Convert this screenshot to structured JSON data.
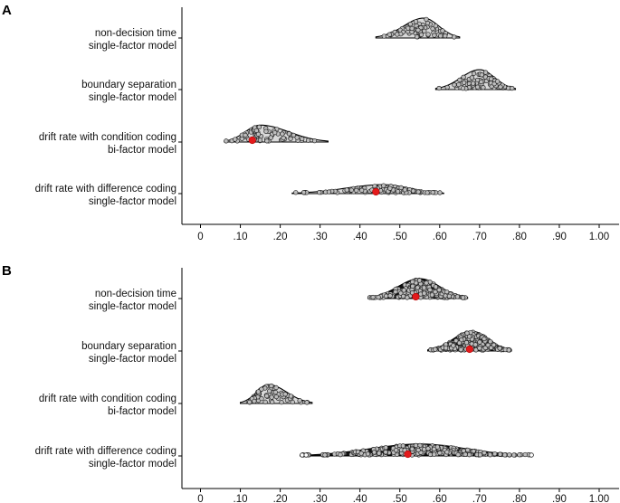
{
  "chart_data": [
    {
      "type": "violin",
      "panel": "A",
      "x_ticks": [
        "0",
        ".10",
        ".20",
        ".30",
        ".40",
        ".50",
        ".60",
        ".70",
        ".80",
        ".90",
        "1.00"
      ],
      "xlim": [
        -0.04,
        1.04
      ],
      "grid": false,
      "rows": [
        {
          "label_line1": "non-decision time",
          "label_line2": "single-factor model",
          "min": 0.44,
          "max": 0.65,
          "mode": 0.56,
          "density_height": 1.0,
          "highlight": null,
          "fill": "#d9d9d9",
          "point_count": 70
        },
        {
          "label_line1": "boundary separation",
          "label_line2": "single-factor model",
          "min": 0.59,
          "max": 0.79,
          "mode": 0.7,
          "density_height": 1.0,
          "highlight": null,
          "fill": "#d9d9d9",
          "point_count": 70
        },
        {
          "label_line1": "drift rate with condition coding",
          "label_line2": "bi-factor model",
          "min": 0.06,
          "max": 0.32,
          "mode": 0.15,
          "density_height": 0.85,
          "highlight": 0.13,
          "fill": "#d9d9d9",
          "point_count": 70
        },
        {
          "label_line1": "drift rate with difference coding",
          "label_line2": "single-factor model",
          "min": 0.23,
          "max": 0.61,
          "mode": 0.46,
          "density_height": 0.45,
          "highlight": 0.44,
          "fill": "#d9d9d9",
          "point_count": 110
        }
      ]
    },
    {
      "type": "violin",
      "panel": "B",
      "x_ticks": [
        "0",
        ".10",
        ".20",
        ".30",
        ".40",
        ".50",
        ".60",
        ".70",
        ".80",
        ".90",
        "1.00"
      ],
      "xlim": [
        -0.04,
        1.04
      ],
      "grid": false,
      "rows": [
        {
          "label_line1": "non-decision time",
          "label_line2": "single-factor model",
          "min": 0.42,
          "max": 0.67,
          "mode": 0.55,
          "density_height": 1.0,
          "highlight": 0.54,
          "fill": "#111111",
          "point_count": 260
        },
        {
          "label_line1": "boundary separation",
          "label_line2": "single-factor model",
          "min": 0.57,
          "max": 0.78,
          "mode": 0.68,
          "density_height": 1.0,
          "highlight": 0.675,
          "fill": "#111111",
          "point_count": 260
        },
        {
          "label_line1": "drift rate with condition coding",
          "label_line2": "bi-factor model",
          "min": 0.1,
          "max": 0.28,
          "mode": 0.17,
          "density_height": 0.95,
          "highlight": null,
          "fill": "#d9d9d9",
          "point_count": 60
        },
        {
          "label_line1": "drift rate with difference coding",
          "label_line2": "single-factor model",
          "min": 0.25,
          "max": 0.83,
          "mode": 0.55,
          "density_height": 0.6,
          "highlight": 0.52,
          "fill": "#111111",
          "point_count": 320
        }
      ]
    }
  ],
  "colors": {
    "axis": "#000000",
    "violin_outline": "#000000",
    "point_fill": "#bdbdbd",
    "highlight": "#e31a1c"
  }
}
